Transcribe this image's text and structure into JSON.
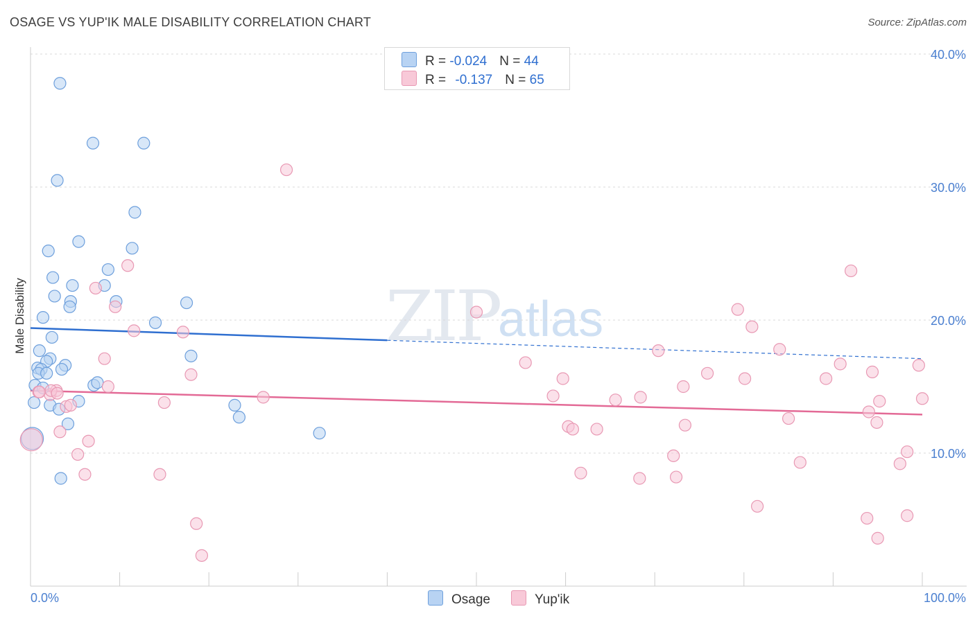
{
  "header": {
    "title": "OSAGE VS YUP'IK MALE DISABILITY CORRELATION CHART",
    "source": "Source: ZipAtlas.com"
  },
  "watermark": {
    "zip": "ZIP",
    "atlas": "atlas"
  },
  "legend": {
    "rows": [
      {
        "r_label": "R = ",
        "r_value": "-0.024",
        "n_label": "N = ",
        "n_value": "44",
        "color": "#b8d3f3",
        "border": "#6d9fdc"
      },
      {
        "r_label": "R = ",
        "r_value": "-0.137",
        "n_label": "N = ",
        "n_value": "65",
        "color": "#f8c9d8",
        "border": "#e898b3"
      }
    ]
  },
  "bottom_legend": [
    {
      "label": "Osage",
      "color": "#b8d3f3",
      "border": "#6d9fdc"
    },
    {
      "label": "Yup'ik",
      "color": "#f8c9d8",
      "border": "#e898b3"
    }
  ],
  "chart_data": {
    "type": "scatter",
    "title": "OSAGE VS YUP'IK MALE DISABILITY CORRELATION CHART",
    "xlabel": "",
    "ylabel": "Male Disability",
    "xlim": [
      0,
      100
    ],
    "ylim": [
      0,
      40
    ],
    "x_tick_labels": [
      "0.0%",
      "100.0%"
    ],
    "y_ticks": [
      10,
      20,
      30,
      40
    ],
    "y_tick_labels": [
      "10.0%",
      "20.0%",
      "30.0%",
      "40.0%"
    ],
    "grid": true,
    "legend_position": "top-center",
    "series": [
      {
        "name": "Osage",
        "color": "#6d9fdc",
        "fill": "#b8d3f3",
        "trend": {
          "x0": 0,
          "y0": 19.4,
          "x1": 100,
          "y1": 17.1,
          "solid_until": 40
        },
        "points": [
          [
            3.3,
            37.8
          ],
          [
            7.0,
            33.3
          ],
          [
            12.7,
            33.3
          ],
          [
            3.0,
            30.5
          ],
          [
            11.7,
            28.1
          ],
          [
            5.4,
            25.9
          ],
          [
            2.0,
            25.2
          ],
          [
            11.4,
            25.4
          ],
          [
            8.7,
            23.8
          ],
          [
            2.5,
            23.2
          ],
          [
            4.7,
            22.6
          ],
          [
            8.3,
            22.6
          ],
          [
            2.7,
            21.8
          ],
          [
            4.5,
            21.4
          ],
          [
            9.6,
            21.4
          ],
          [
            4.4,
            21.0
          ],
          [
            17.5,
            21.3
          ],
          [
            1.4,
            20.2
          ],
          [
            14.0,
            19.8
          ],
          [
            2.4,
            18.7
          ],
          [
            1.0,
            17.7
          ],
          [
            2.2,
            17.1
          ],
          [
            1.8,
            16.9
          ],
          [
            3.9,
            16.6
          ],
          [
            0.8,
            16.4
          ],
          [
            1.2,
            16.3
          ],
          [
            3.5,
            16.3
          ],
          [
            0.9,
            16.0
          ],
          [
            1.8,
            16.0
          ],
          [
            18.0,
            17.3
          ],
          [
            0.5,
            15.1
          ],
          [
            1.4,
            14.9
          ],
          [
            7.1,
            15.1
          ],
          [
            7.5,
            15.3
          ],
          [
            0.4,
            13.8
          ],
          [
            5.4,
            13.9
          ],
          [
            2.2,
            13.6
          ],
          [
            3.2,
            13.3
          ],
          [
            22.9,
            13.6
          ],
          [
            23.4,
            12.7
          ],
          [
            4.2,
            12.2
          ],
          [
            32.4,
            11.5
          ],
          [
            0.2,
            11.1
          ],
          [
            3.4,
            8.1
          ]
        ]
      },
      {
        "name": "Yup'ik",
        "color": "#e898b3",
        "fill": "#f8c9d8",
        "trend": {
          "x0": 0,
          "y0": 14.7,
          "x1": 100,
          "y1": 12.9
        },
        "points": [
          [
            28.7,
            31.3
          ],
          [
            10.9,
            24.1
          ],
          [
            92.0,
            23.7
          ],
          [
            7.3,
            22.4
          ],
          [
            9.5,
            21.0
          ],
          [
            50.0,
            20.6
          ],
          [
            79.3,
            20.8
          ],
          [
            80.9,
            19.5
          ],
          [
            11.6,
            19.2
          ],
          [
            17.1,
            19.1
          ],
          [
            84.0,
            17.8
          ],
          [
            70.4,
            17.7
          ],
          [
            8.3,
            17.1
          ],
          [
            55.5,
            16.8
          ],
          [
            90.8,
            16.7
          ],
          [
            99.6,
            16.6
          ],
          [
            18.0,
            15.9
          ],
          [
            75.9,
            16.0
          ],
          [
            80.1,
            15.6
          ],
          [
            94.4,
            16.1
          ],
          [
            59.7,
            15.6
          ],
          [
            89.2,
            15.6
          ],
          [
            8.7,
            15.0
          ],
          [
            73.2,
            15.0
          ],
          [
            2.2,
            14.4
          ],
          [
            2.9,
            14.7
          ],
          [
            0.9,
            14.6
          ],
          [
            2.3,
            14.7
          ],
          [
            3.0,
            14.5
          ],
          [
            1.0,
            14.6
          ],
          [
            26.1,
            14.2
          ],
          [
            58.6,
            14.3
          ],
          [
            68.4,
            14.2
          ],
          [
            65.6,
            14.0
          ],
          [
            95.2,
            13.9
          ],
          [
            100.0,
            14.1
          ],
          [
            15.0,
            13.8
          ],
          [
            4.0,
            13.5
          ],
          [
            4.5,
            13.6
          ],
          [
            94.0,
            13.1
          ],
          [
            85.0,
            12.6
          ],
          [
            94.9,
            12.3
          ],
          [
            73.4,
            12.1
          ],
          [
            60.3,
            12.0
          ],
          [
            60.8,
            11.8
          ],
          [
            63.5,
            11.8
          ],
          [
            3.3,
            11.6
          ],
          [
            0.1,
            11.0
          ],
          [
            6.5,
            10.9
          ],
          [
            5.3,
            9.9
          ],
          [
            72.1,
            9.8
          ],
          [
            98.3,
            10.1
          ],
          [
            97.5,
            9.2
          ],
          [
            86.3,
            9.3
          ],
          [
            6.1,
            8.4
          ],
          [
            14.5,
            8.4
          ],
          [
            61.7,
            8.5
          ],
          [
            72.4,
            8.2
          ],
          [
            68.3,
            8.1
          ],
          [
            81.5,
            6.0
          ],
          [
            18.6,
            4.7
          ],
          [
            93.8,
            5.1
          ],
          [
            98.3,
            5.3
          ],
          [
            95.0,
            3.6
          ],
          [
            19.2,
            2.3
          ]
        ]
      }
    ]
  }
}
